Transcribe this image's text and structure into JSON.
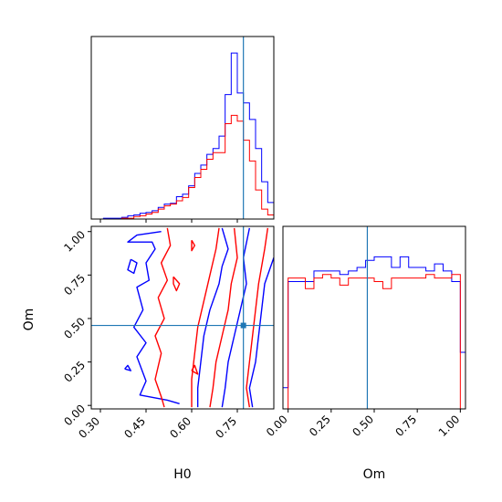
{
  "chart_data": {
    "type": "corner",
    "parameters": [
      "H0",
      "Om"
    ],
    "truths": {
      "H0": 0.77,
      "Om": 0.46
    },
    "colors": {
      "blue": "#0000ff",
      "red": "#ff0000",
      "truth": "#1f77b4"
    },
    "panels": {
      "h0_histogram": {
        "type": "histogram",
        "xlim": [
          0.27,
          0.87
        ],
        "bins": [
          0.27,
          0.29,
          0.31,
          0.33,
          0.35,
          0.37,
          0.39,
          0.41,
          0.43,
          0.45,
          0.47,
          0.49,
          0.51,
          0.53,
          0.55,
          0.57,
          0.59,
          0.61,
          0.63,
          0.65,
          0.67,
          0.69,
          0.71,
          0.73,
          0.75,
          0.77,
          0.79,
          0.81,
          0.83,
          0.85,
          0.87
        ],
        "series": [
          {
            "color": "blue",
            "values": [
              0,
              0,
              1,
              1,
              1,
              2,
              4,
              5,
              7,
              8,
              10,
              14,
              18,
              19,
              27,
              30,
              40,
              55,
              65,
              78,
              85,
              100,
              150,
              200,
              152,
              140,
              120,
              85,
              45,
              20
            ]
          },
          {
            "color": "red",
            "values": [
              0,
              0,
              0,
              0,
              0,
              1,
              1,
              3,
              4,
              6,
              8,
              12,
              16,
              18,
              22,
              26,
              38,
              50,
              60,
              72,
              80,
              80,
              115,
              125,
              118,
              95,
              70,
              35,
              12,
              5
            ]
          }
        ]
      },
      "om_histogram": {
        "type": "histogram",
        "xlim": [
          -0.03,
          1.03
        ],
        "bins": [
          -0.03,
          0.0,
          0.05,
          0.1,
          0.15,
          0.2,
          0.25,
          0.3,
          0.35,
          0.4,
          0.45,
          0.5,
          0.55,
          0.6,
          0.65,
          0.7,
          0.75,
          0.8,
          0.85,
          0.9,
          0.95,
          1.0,
          1.03
        ],
        "series": [
          {
            "color": "blue",
            "values": [
              30,
              180,
              180,
              180,
              195,
              195,
              195,
              190,
              195,
              200,
              210,
              215,
              215,
              200,
              215,
              200,
              200,
              195,
              205,
              195,
              180,
              80
            ]
          },
          {
            "color": "red",
            "values": [
              0,
              185,
              185,
              170,
              185,
              190,
              185,
              175,
              185,
              185,
              185,
              180,
              170,
              185,
              185,
              185,
              185,
              190,
              185,
              185,
              190,
              0
            ]
          }
        ]
      },
      "contours": {
        "type": "contour",
        "xlim": [
          0.27,
          0.87
        ],
        "ylim": [
          -0.02,
          1.03
        ],
        "series": [
          {
            "color": "blue",
            "level": "outer",
            "points": [
              [
                0.5,
                1.0
              ],
              [
                0.42,
                0.98
              ],
              [
                0.39,
                0.94
              ],
              [
                0.47,
                0.94
              ],
              [
                0.48,
                0.9
              ],
              [
                0.45,
                0.82
              ],
              [
                0.46,
                0.72
              ],
              [
                0.42,
                0.68
              ],
              [
                0.44,
                0.55
              ],
              [
                0.41,
                0.45
              ],
              [
                0.45,
                0.36
              ],
              [
                0.42,
                0.28
              ],
              [
                0.45,
                0.14
              ],
              [
                0.43,
                0.06
              ],
              [
                0.52,
                0.03
              ],
              [
                0.56,
                0.01
              ]
            ]
          },
          {
            "color": "blue",
            "level": "outer",
            "points": [
              [
                0.7,
                1.02
              ],
              [
                0.72,
                0.9
              ],
              [
                0.7,
                0.8
              ],
              [
                0.69,
                0.7
              ],
              [
                0.66,
                0.55
              ],
              [
                0.64,
                0.4
              ],
              [
                0.63,
                0.25
              ],
              [
                0.62,
                0.1
              ],
              [
                0.62,
                -0.01
              ]
            ]
          },
          {
            "color": "blue",
            "level": "inner",
            "points": [
              [
                0.79,
                1.02
              ],
              [
                0.77,
                0.85
              ],
              [
                0.78,
                0.7
              ],
              [
                0.76,
                0.55
              ],
              [
                0.74,
                0.4
              ],
              [
                0.72,
                0.25
              ],
              [
                0.71,
                0.1
              ],
              [
                0.7,
                -0.01
              ]
            ]
          },
          {
            "color": "blue",
            "level": "inner",
            "points": [
              [
                0.8,
                -0.01
              ],
              [
                0.79,
                0.1
              ],
              [
                0.81,
                0.25
              ],
              [
                0.82,
                0.4
              ],
              [
                0.83,
                0.55
              ],
              [
                0.84,
                0.7
              ],
              [
                0.87,
                0.85
              ]
            ]
          },
          {
            "color": "blue",
            "level": "island",
            "points": [
              [
                0.4,
                0.84
              ],
              [
                0.42,
                0.82
              ],
              [
                0.41,
                0.76
              ],
              [
                0.39,
                0.78
              ],
              [
                0.4,
                0.84
              ]
            ]
          },
          {
            "color": "blue",
            "level": "island",
            "points": [
              [
                0.38,
                0.21
              ],
              [
                0.39,
                0.23
              ],
              [
                0.4,
                0.2
              ],
              [
                0.38,
                0.21
              ]
            ]
          },
          {
            "color": "red",
            "level": "outer",
            "points": [
              [
                0.52,
                1.02
              ],
              [
                0.53,
                0.92
              ],
              [
                0.5,
                0.82
              ],
              [
                0.52,
                0.72
              ],
              [
                0.49,
                0.62
              ],
              [
                0.51,
                0.5
              ],
              [
                0.48,
                0.4
              ],
              [
                0.5,
                0.3
              ],
              [
                0.48,
                0.15
              ],
              [
                0.5,
                0.05
              ],
              [
                0.51,
                -0.01
              ]
            ]
          },
          {
            "color": "red",
            "level": "outer",
            "points": [
              [
                0.69,
                1.02
              ],
              [
                0.68,
                0.9
              ],
              [
                0.66,
                0.75
              ],
              [
                0.64,
                0.6
              ],
              [
                0.62,
                0.45
              ],
              [
                0.61,
                0.3
              ],
              [
                0.6,
                0.15
              ],
              [
                0.6,
                -0.01
              ]
            ]
          },
          {
            "color": "red",
            "level": "inner",
            "points": [
              [
                0.74,
                1.02
              ],
              [
                0.75,
                0.85
              ],
              [
                0.73,
                0.7
              ],
              [
                0.72,
                0.55
              ],
              [
                0.7,
                0.4
              ],
              [
                0.68,
                0.25
              ],
              [
                0.67,
                0.1
              ],
              [
                0.66,
                -0.01
              ]
            ]
          },
          {
            "color": "red",
            "level": "inner",
            "points": [
              [
                0.79,
                -0.01
              ],
              [
                0.78,
                0.1
              ],
              [
                0.79,
                0.25
              ],
              [
                0.8,
                0.4
              ],
              [
                0.81,
                0.55
              ],
              [
                0.82,
                0.7
              ],
              [
                0.84,
                0.9
              ],
              [
                0.85,
                1.02
              ]
            ]
          },
          {
            "color": "red",
            "level": "island",
            "points": [
              [
                0.6,
                0.95
              ],
              [
                0.61,
                0.92
              ],
              [
                0.6,
                0.89
              ],
              [
                0.6,
                0.95
              ]
            ]
          },
          {
            "color": "red",
            "level": "island",
            "points": [
              [
                0.54,
                0.74
              ],
              [
                0.56,
                0.7
              ],
              [
                0.55,
                0.66
              ],
              [
                0.54,
                0.7
              ],
              [
                0.54,
                0.74
              ]
            ]
          },
          {
            "color": "red",
            "level": "island",
            "points": [
              [
                0.6,
                0.2
              ],
              [
                0.61,
                0.23
              ],
              [
                0.62,
                0.18
              ],
              [
                0.6,
                0.2
              ]
            ]
          }
        ]
      }
    },
    "tick_labels": {
      "h0": [
        "0.30",
        "0.45",
        "0.60",
        "0.75"
      ],
      "om": [
        "0.00",
        "0.25",
        "0.50",
        "0.75",
        "1.00"
      ]
    },
    "xlabels": {
      "h0": "H0",
      "om": "Om"
    },
    "ylabel": "Om"
  }
}
